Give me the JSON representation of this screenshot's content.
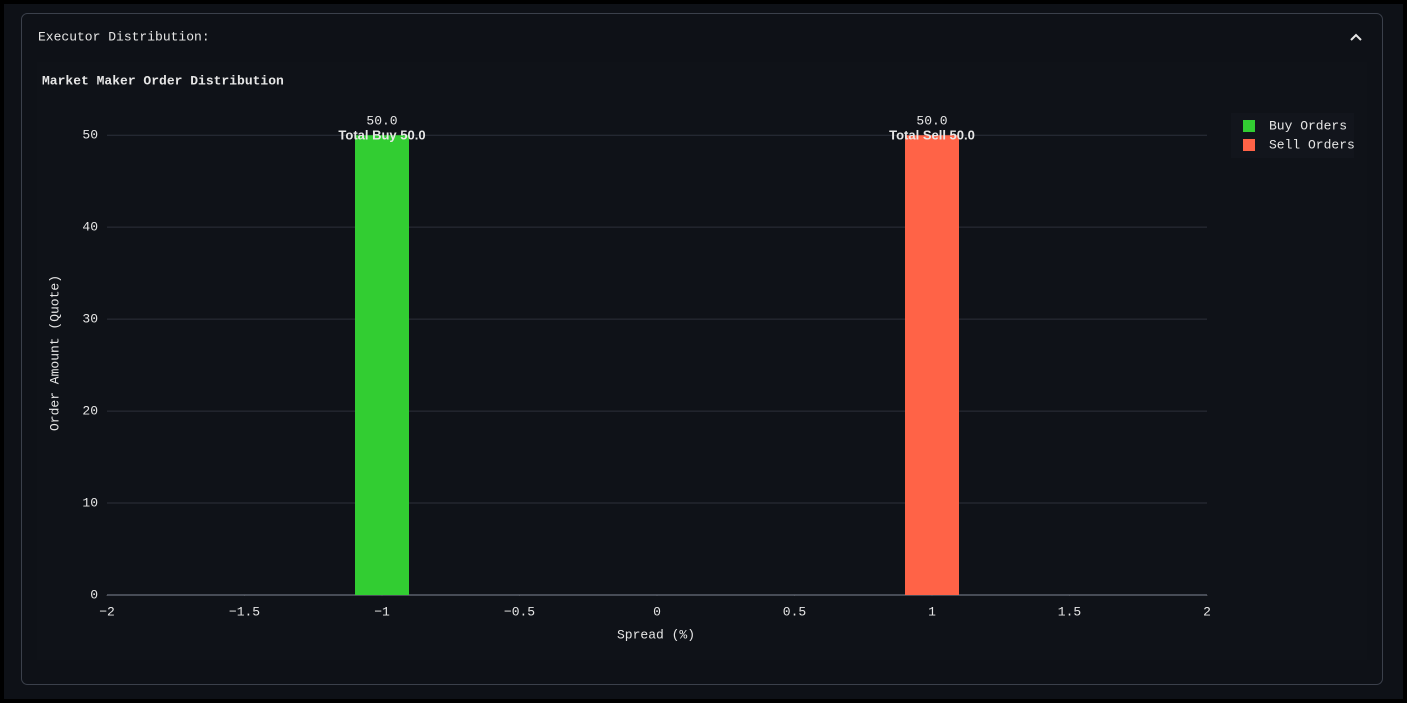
{
  "panel": {
    "title": "Executor Distribution:"
  },
  "chart_data": {
    "type": "bar",
    "title": "Market Maker Order Distribution",
    "x_label": "Spread (%)",
    "y_label": "Order Amount (Quote)",
    "series": [
      {
        "name": "Buy Orders",
        "color": "#32cd32",
        "x": [
          -1
        ],
        "values": [
          50
        ],
        "value_labels": [
          "50.0"
        ]
      },
      {
        "name": "Sell Orders",
        "color": "#ff6347",
        "x": [
          1
        ],
        "values": [
          50
        ],
        "value_labels": [
          "50.0"
        ]
      }
    ],
    "annotations": [
      "Total Buy 50.0",
      "Total Sell 50.0"
    ],
    "xlim": [
      -2,
      2
    ],
    "xticks": [
      {
        "value": -2,
        "label": "−2"
      },
      {
        "value": -1.5,
        "label": "−1.5"
      },
      {
        "value": -1,
        "label": "−1"
      },
      {
        "value": -0.5,
        "label": "−0.5"
      },
      0,
      0.5,
      1,
      1.5,
      2
    ],
    "ylim": [
      0,
      52.2
    ],
    "yticks": [
      0,
      10,
      20,
      30,
      40,
      50
    ],
    "grid": true,
    "legend": "top-right"
  }
}
